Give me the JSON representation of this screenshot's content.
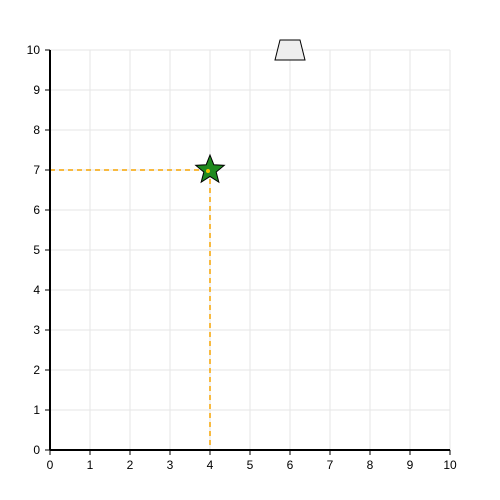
{
  "board": {
    "x_range": [
      0,
      10
    ],
    "y_range": [
      0,
      10
    ],
    "x_ticks": [
      "0",
      "1",
      "2",
      "3",
      "4",
      "5",
      "6",
      "7",
      "8",
      "9",
      "10"
    ],
    "y_ticks": [
      "0",
      "1",
      "2",
      "3",
      "4",
      "5",
      "6",
      "7",
      "8",
      "9",
      "10"
    ],
    "grid": true,
    "grid_color": "#e6e6e6",
    "axis_color": "#000000"
  },
  "star": {
    "x": 4,
    "y": 7,
    "fill": "#1f8a1f",
    "stroke": "#000000",
    "inner_dot": "#f5c400"
  },
  "guides": {
    "color": "#f5a300",
    "style": "dashed"
  },
  "bucket": {
    "x": 6,
    "y": 10,
    "fill": "#eeeeee",
    "stroke": "#000000"
  }
}
